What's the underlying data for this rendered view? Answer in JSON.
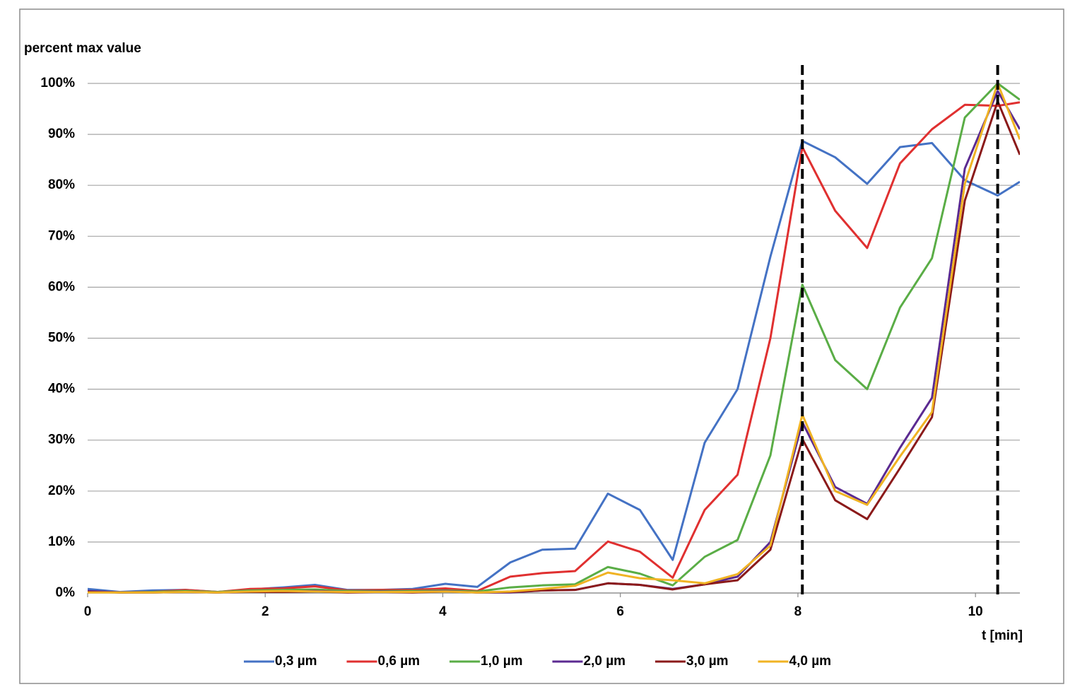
{
  "chart_data": {
    "type": "line",
    "ylabel": "percent max value",
    "xlabel": "t [min]",
    "x": [
      0,
      0.37,
      0.73,
      1.1,
      1.46,
      1.83,
      2.2,
      2.56,
      2.93,
      3.29,
      3.66,
      4.03,
      4.39,
      4.76,
      5.12,
      5.49,
      5.86,
      6.22,
      6.59,
      6.95,
      7.32,
      7.69,
      8.05,
      8.42,
      8.78,
      9.15,
      9.51,
      9.88,
      10.25,
      10.5
    ],
    "series": [
      {
        "name": "0,3 µm",
        "color": "#4472c4",
        "values": [
          0.8,
          0.2,
          0.5,
          0.6,
          0.2,
          0.7,
          1.1,
          1.6,
          0.6,
          0.6,
          0.8,
          1.8,
          1.2,
          6.0,
          8.5,
          8.7,
          19.5,
          16.3,
          6.5,
          29.5,
          40,
          66,
          88.7,
          85.5,
          80.3,
          87.5,
          88.3,
          81,
          78,
          80.7
        ]
      },
      {
        "name": "0,6 µm",
        "color": "#e03030",
        "values": [
          0.3,
          0.1,
          0.2,
          0.6,
          0.2,
          0.8,
          0.9,
          1.3,
          0.5,
          0.6,
          0.6,
          0.9,
          0.4,
          3.2,
          3.9,
          4.3,
          10.1,
          8.1,
          3.0,
          16.3,
          23.2,
          50,
          87.5,
          75,
          67.7,
          84.3,
          91,
          95.8,
          95.6,
          96.3
        ]
      },
      {
        "name": "1,0 µm",
        "color": "#5aad46",
        "values": [
          0.3,
          0.1,
          0.2,
          0.4,
          0.2,
          0.5,
          0.6,
          0.7,
          0.4,
          0.4,
          0.4,
          0.5,
          0.3,
          1.1,
          1.5,
          1.7,
          5.1,
          3.8,
          1.5,
          7.1,
          10.4,
          27,
          60.5,
          45.7,
          40,
          56,
          65.7,
          93.3,
          100,
          96.8
        ]
      },
      {
        "name": "2,0 µm",
        "color": "#5b2a91",
        "values": [
          0.4,
          0.1,
          0.1,
          0.2,
          0.1,
          0.3,
          0.3,
          0.4,
          0.2,
          0.3,
          0.2,
          0.4,
          0.1,
          0.1,
          0.5,
          0.6,
          1.9,
          1.6,
          0.8,
          1.7,
          3.2,
          10,
          33.5,
          20.8,
          17.5,
          28.5,
          38.3,
          83.3,
          98.5,
          91
        ]
      },
      {
        "name": "3,0 µm",
        "color": "#8b1a1a",
        "values": [
          0.2,
          0.1,
          0.1,
          0.2,
          0.1,
          0.2,
          0.2,
          0.3,
          0.1,
          0.2,
          0.1,
          0.3,
          0.1,
          0.2,
          0.5,
          0.6,
          1.9,
          1.6,
          0.7,
          1.7,
          2.5,
          8.5,
          30.2,
          18.2,
          14.5,
          24.5,
          34.5,
          77,
          96.5,
          86
        ]
      },
      {
        "name": "4,0 µm",
        "color": "#f0b323",
        "values": [
          0.1,
          0.1,
          0.1,
          0.2,
          0.1,
          0.3,
          0.4,
          0.3,
          0.2,
          0.2,
          0.2,
          0.3,
          0.1,
          0.3,
          0.8,
          1.4,
          4.0,
          2.9,
          2.5,
          1.9,
          3.7,
          9.3,
          35,
          20,
          17.3,
          26.8,
          35.5,
          80.3,
          100,
          89
        ]
      }
    ],
    "reference_lines": [
      8.05,
      10.25
    ],
    "xlim": [
      0,
      10.5
    ],
    "xticks": [
      0,
      2,
      4,
      6,
      8,
      10
    ],
    "ylim": [
      0,
      100
    ],
    "yticks": [
      {
        "value": 0,
        "label": "0%"
      },
      {
        "value": 10,
        "label": "10%"
      },
      {
        "value": 20,
        "label": "20%"
      },
      {
        "value": 30,
        "label": "30%"
      },
      {
        "value": 40,
        "label": "40%"
      },
      {
        "value": 50,
        "label": "50%"
      },
      {
        "value": 60,
        "label": "60%"
      },
      {
        "value": 70,
        "label": "70%"
      },
      {
        "value": 80,
        "label": "80%"
      },
      {
        "value": 90,
        "label": "90%"
      },
      {
        "value": 100,
        "label": "100%"
      }
    ],
    "grid": true,
    "legend": "bottom"
  }
}
